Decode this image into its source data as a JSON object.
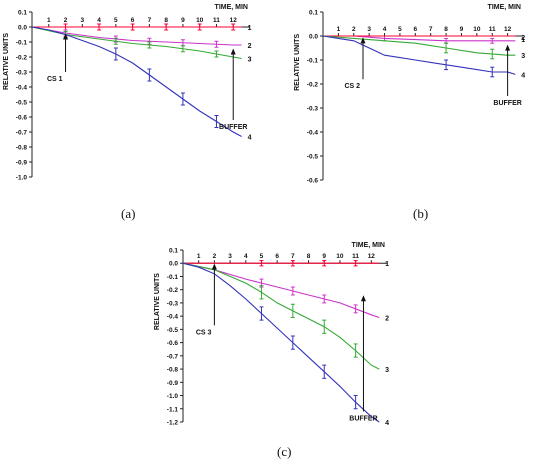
{
  "figure": {
    "panel_labels": [
      "(a)",
      "(b)",
      "(c)"
    ]
  },
  "chart_data": [
    {
      "type": "line",
      "panel": "(a)",
      "xlabel": "TIME, MIN",
      "ylabel": "RELATIVE UNITS",
      "xlim": [
        0,
        13
      ],
      "ylim": [
        -1.0,
        0.1
      ],
      "xticks": [
        1,
        2,
        3,
        4,
        5,
        6,
        7,
        8,
        9,
        10,
        11,
        12
      ],
      "yticks": [
        "0.1",
        "0.0",
        "-0.1",
        "-0.2",
        "-0.3",
        "-0.4",
        "-0.5",
        "-0.6",
        "-0.7",
        "-0.8",
        "-0.9",
        "-1.0"
      ],
      "annotations": [
        {
          "text": "CS 1",
          "x": 2.0,
          "y_from": -0.05,
          "y_to": -0.3
        },
        {
          "text": "BUFFER",
          "x": 12.0,
          "y_from": -0.15,
          "y_to": -0.62
        }
      ],
      "series": [
        {
          "name": "1",
          "color": "#ff0033",
          "x": [
            0,
            2,
            4,
            6,
            8,
            10,
            12,
            12.5
          ],
          "y": [
            0,
            0,
            0,
            0,
            0,
            0,
            0,
            0
          ],
          "error_x": [
            2,
            4,
            6,
            8,
            10,
            12
          ],
          "error": 0.02
        },
        {
          "name": "2",
          "color": "#cc33cc",
          "x": [
            0,
            2,
            4,
            6,
            8,
            10,
            12,
            12.5
          ],
          "y": [
            0,
            -0.04,
            -0.07,
            -0.09,
            -0.1,
            -0.11,
            -0.12,
            -0.12
          ],
          "error_x": [
            2,
            5,
            7,
            9,
            11
          ],
          "error": 0.02
        },
        {
          "name": "3",
          "color": "#33aa33",
          "x": [
            0,
            2,
            4,
            6,
            8,
            10,
            12,
            12.5
          ],
          "y": [
            0,
            -0.05,
            -0.08,
            -0.11,
            -0.13,
            -0.16,
            -0.2,
            -0.21
          ],
          "error_x": [
            2,
            5,
            7,
            9,
            11
          ],
          "error": 0.02
        },
        {
          "name": "4",
          "color": "#3333bb",
          "x": [
            0,
            1,
            2,
            3,
            4,
            5,
            6,
            7,
            8,
            9,
            10,
            11,
            12,
            12.5
          ],
          "y": [
            0,
            -0.02,
            -0.05,
            -0.09,
            -0.13,
            -0.18,
            -0.24,
            -0.32,
            -0.4,
            -0.48,
            -0.56,
            -0.63,
            -0.7,
            -0.73
          ],
          "error_x": [
            5,
            7,
            9,
            11
          ],
          "error": 0.04
        }
      ]
    },
    {
      "type": "line",
      "panel": "(b)",
      "xlabel": "TIME, MIN",
      "ylabel": "RELATIVE UNITS",
      "xlim": [
        0,
        13
      ],
      "ylim": [
        -0.6,
        0.1
      ],
      "xticks": [
        1,
        2,
        3,
        4,
        5,
        6,
        7,
        8,
        9,
        10,
        11,
        12
      ],
      "yticks": [
        "0.1",
        "0.0",
        "-0.1",
        "-0.2",
        "-0.3",
        "-0.4",
        "-0.5",
        "-0.6"
      ],
      "annotations": [
        {
          "text": "CS 2",
          "x": 2.6,
          "y_from": -0.01,
          "y_to": -0.18
        },
        {
          "text": "BUFFER",
          "x": 12.0,
          "y_from": -0.04,
          "y_to": -0.25
        }
      ],
      "series": [
        {
          "name": "2",
          "color": "#cc33cc",
          "x": [
            0,
            2,
            4,
            6,
            8,
            10,
            12,
            12.5
          ],
          "y": [
            0,
            0,
            -0.01,
            -0.015,
            -0.02,
            -0.02,
            -0.02,
            -0.02
          ],
          "error_x": [
            4,
            8,
            11
          ],
          "error": 0.01
        },
        {
          "name": "1",
          "color": "#ff0033",
          "x": [
            0,
            2,
            4,
            6,
            8,
            10,
            12,
            12.5
          ],
          "y": [
            0,
            0,
            0,
            0,
            0,
            0,
            0,
            0
          ],
          "error_x": [],
          "error": 0.0
        },
        {
          "name": "3",
          "color": "#33aa33",
          "x": [
            0,
            2,
            4,
            6,
            8,
            10,
            12,
            12.5
          ],
          "y": [
            0,
            -0.01,
            -0.02,
            -0.03,
            -0.05,
            -0.07,
            -0.08,
            -0.08
          ],
          "error_x": [
            8,
            11
          ],
          "error": 0.02
        },
        {
          "name": "4",
          "color": "#3333bb",
          "x": [
            0,
            1,
            2,
            3,
            4,
            5,
            6,
            7,
            8,
            9,
            10,
            11,
            12,
            12.5
          ],
          "y": [
            0,
            -0.01,
            -0.02,
            -0.05,
            -0.08,
            -0.09,
            -0.1,
            -0.11,
            -0.12,
            -0.13,
            -0.14,
            -0.15,
            -0.15,
            -0.16
          ],
          "error_x": [
            8,
            11
          ],
          "error": 0.02
        }
      ]
    },
    {
      "type": "line",
      "panel": "(c)",
      "xlabel": "TIME, MIN",
      "ylabel": "RELATIVE UNITS",
      "xlim": [
        0,
        13
      ],
      "ylim": [
        -1.2,
        0.1
      ],
      "xticks": [
        1,
        2,
        3,
        4,
        5,
        6,
        7,
        8,
        9,
        10,
        11,
        12
      ],
      "yticks": [
        "0.1",
        "0.0",
        "-0.1",
        "-0.2",
        "-0.3",
        "-0.4",
        "-0.5",
        "-0.6",
        "-0.7",
        "-0.8",
        "-0.9",
        "-1.0",
        "-1.1",
        "-1.2"
      ],
      "annotations": [
        {
          "text": "CS 3",
          "x": 2.0,
          "y_from": -0.01,
          "y_to": -0.47
        },
        {
          "text": "BUFFER",
          "x": 11.5,
          "y_from": -0.25,
          "y_to": -1.12
        }
      ],
      "series": [
        {
          "name": "1",
          "color": "#ff0033",
          "x": [
            0,
            2,
            4,
            6,
            8,
            10,
            12,
            12.5
          ],
          "y": [
            0,
            0,
            0,
            0,
            0,
            0,
            0,
            0
          ],
          "error_x": [
            5,
            7,
            9,
            11
          ],
          "error": 0.02
        },
        {
          "name": "2",
          "color": "#cc33cc",
          "x": [
            0,
            2,
            4,
            6,
            8,
            10,
            12,
            12.5
          ],
          "y": [
            0,
            -0.05,
            -0.12,
            -0.18,
            -0.24,
            -0.3,
            -0.39,
            -0.41
          ],
          "error_x": [
            5,
            7,
            9,
            11
          ],
          "error": 0.03
        },
        {
          "name": "3",
          "color": "#33aa33",
          "x": [
            0,
            2,
            4,
            5,
            6,
            7,
            8,
            9,
            10,
            11,
            12,
            12.5
          ],
          "y": [
            0,
            -0.05,
            -0.15,
            -0.22,
            -0.3,
            -0.36,
            -0.42,
            -0.48,
            -0.56,
            -0.66,
            -0.77,
            -0.8
          ],
          "error_x": [
            5,
            7,
            9,
            11
          ],
          "error": 0.05
        },
        {
          "name": "4",
          "color": "#3333bb",
          "x": [
            0,
            1,
            2,
            3,
            4,
            5,
            6,
            7,
            8,
            9,
            10,
            11,
            12,
            12.5
          ],
          "y": [
            0,
            -0.03,
            -0.08,
            -0.17,
            -0.27,
            -0.38,
            -0.49,
            -0.6,
            -0.71,
            -0.82,
            -0.93,
            -1.05,
            -1.16,
            -1.2
          ],
          "error_x": [
            5,
            7,
            9,
            11
          ],
          "error": 0.05
        }
      ]
    }
  ]
}
